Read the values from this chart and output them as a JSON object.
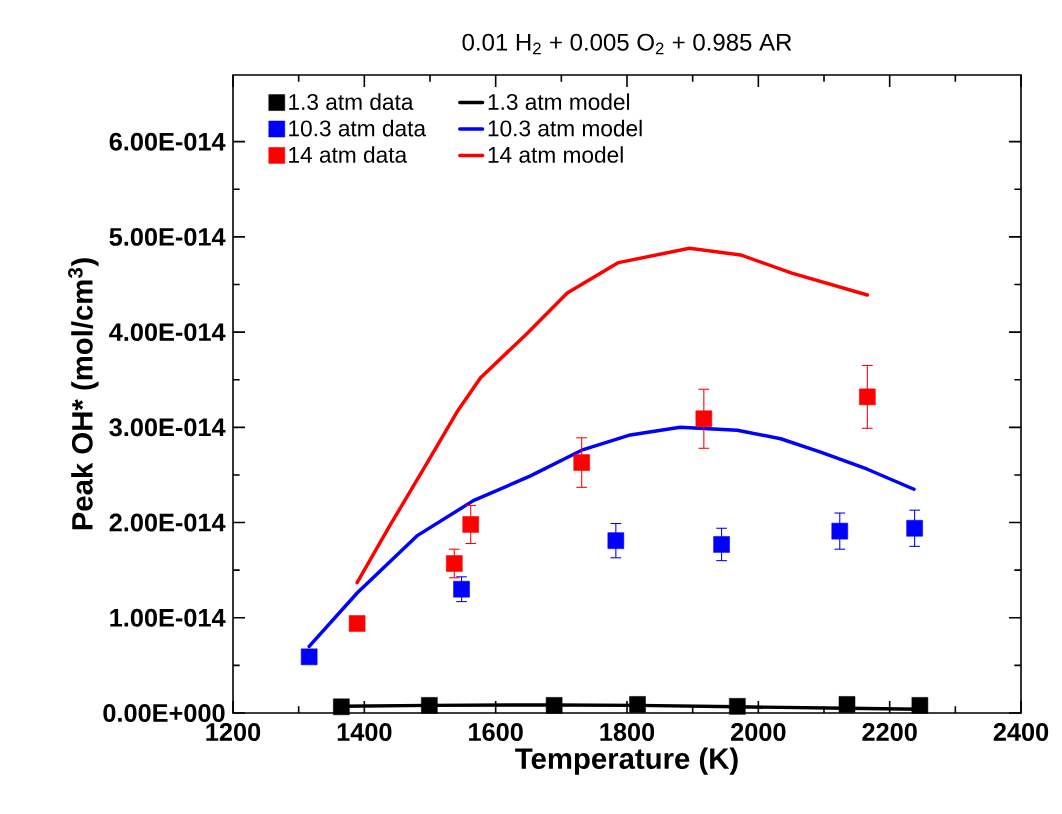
{
  "chart_data": {
    "type": "scatter",
    "title": "0.01 H$_{2}$ + 0.005 O$_{2}$ + 0.985 AR",
    "xlabel": "Temperature (K)",
    "ylabel": "Peak OH* (mol/cm$^{3}$)",
    "xlim": [
      1200,
      2400
    ],
    "ylim": [
      0,
      6.7e-14
    ],
    "xticks": [
      1200,
      1400,
      1600,
      1800,
      2000,
      2200,
      2400
    ],
    "yticks": [
      {
        "value": 0,
        "label": "0.00E+000"
      },
      {
        "value": 1e-14,
        "label": "1.00E-014"
      },
      {
        "value": 2e-14,
        "label": "2.00E-014"
      },
      {
        "value": 3e-14,
        "label": "3.00E-014"
      },
      {
        "value": 4e-14,
        "label": "4.00E-014"
      },
      {
        "value": 5e-14,
        "label": "5.00E-014"
      },
      {
        "value": 6e-14,
        "label": "6.00E-014"
      }
    ],
    "legend": "top left",
    "grid": false,
    "series": [
      {
        "name": "1.3 atm data",
        "marker": "square",
        "color": "#000000",
        "x": [
          1365,
          1499,
          1689,
          1816,
          1968,
          2135,
          2246
        ],
        "values": [
          6.5e-16,
          8e-16,
          8e-16,
          9e-16,
          7e-16,
          9e-16,
          8e-16
        ]
      },
      {
        "name": "1.3 atm model",
        "type": "line",
        "color": "#000000",
        "x": [
          1365,
          1500,
          1690,
          1815,
          1968,
          2135,
          2246
        ],
        "values": [
          7e-16,
          8e-16,
          8.5e-16,
          8e-16,
          6.5e-16,
          5e-16,
          4e-16
        ]
      },
      {
        "name": "10.3 atm data",
        "marker": "square",
        "color": "#0000ff",
        "x": [
          1316,
          1548,
          1783,
          1944,
          2124,
          2238
        ],
        "values": [
          5.9e-15,
          1.3e-14,
          1.81e-14,
          1.77e-14,
          1.91e-14,
          1.94e-14
        ],
        "errors": [
          null,
          1.3e-15,
          1.8e-15,
          1.7e-15,
          1.9e-15,
          1.9e-15
        ]
      },
      {
        "name": "10.3 atm model",
        "type": "line",
        "color": "#0000ff",
        "x": [
          1316,
          1389,
          1480,
          1566,
          1653,
          1731,
          1805,
          1881,
          1968,
          2034,
          2095,
          2166,
          2237
        ],
        "values": [
          7e-15,
          1.26e-14,
          1.86e-14,
          2.23e-14,
          2.49e-14,
          2.76e-14,
          2.92e-14,
          3e-14,
          2.97e-14,
          2.88e-14,
          2.74e-14,
          2.56e-14,
          2.35e-14
        ]
      },
      {
        "name": "14 atm data",
        "marker": "square",
        "color": "#ff0000",
        "x": [
          1389,
          1537,
          1562,
          1731,
          1917,
          2166
        ],
        "values": [
          9.4e-15,
          1.57e-14,
          1.98e-14,
          2.63e-14,
          3.09e-14,
          3.32e-14
        ],
        "errors": [
          null,
          1.5e-15,
          2e-15,
          2.6e-15,
          3.1e-15,
          3.3e-15
        ]
      },
      {
        "name": "14 atm model",
        "type": "line",
        "color": "#ff0000",
        "x": [
          1389,
          1439,
          1490,
          1541,
          1577,
          1647,
          1709,
          1787,
          1895,
          1973,
          2051,
          2166
        ],
        "values": [
          1.37e-14,
          1.97e-14,
          2.56e-14,
          3.16e-14,
          3.52e-14,
          3.98e-14,
          4.41e-14,
          4.73e-14,
          4.88e-14,
          4.81e-14,
          4.62e-14,
          4.39e-14
        ]
      }
    ]
  }
}
